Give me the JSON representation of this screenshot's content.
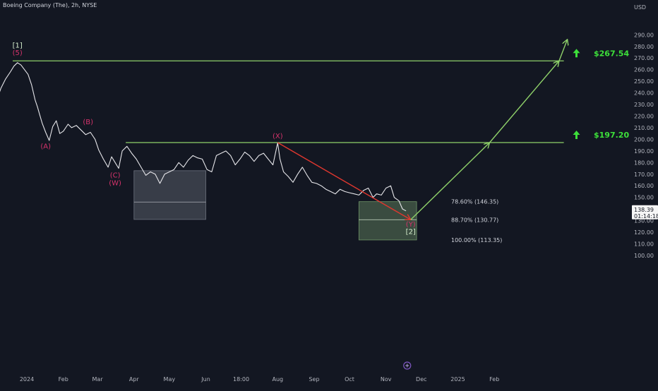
{
  "header": {
    "symbol_title": "Boeing Company (The), 2h, NYSE",
    "currency": "USD"
  },
  "colors": {
    "bg": "#131722",
    "price": "#e6e6ea",
    "green": "#8fd16a",
    "target_green": "#3de03a",
    "red": "#e0372f",
    "magenta": "#d6336c",
    "white_label": "#d9f2d0",
    "zone_gray": "#9aa0ab",
    "zone_green": "#8fbf80",
    "axis_text": "#b2b5be"
  },
  "chart_data": {
    "type": "line",
    "title": "",
    "xlabel": "",
    "ylabel": "",
    "ylim": [
      100,
      300
    ],
    "grid": false,
    "y_ticks": [
      100,
      110,
      120,
      130,
      140,
      150,
      160,
      170,
      180,
      190,
      200,
      210,
      220,
      230,
      240,
      250,
      260,
      270,
      280,
      290
    ],
    "y_tick_labels": [
      "100.00",
      "110.00",
      "120.00",
      "130.00",
      "140.00",
      "150.00",
      "160.00",
      "170.00",
      "180.00",
      "190.00",
      "200.00",
      "210.00",
      "220.00",
      "230.00",
      "240.00",
      "250.00",
      "260.00",
      "270.00",
      "280.00",
      "290.00"
    ],
    "x_tick_labels": [
      {
        "label": "2024",
        "x": "2024-01-01"
      },
      {
        "label": "Feb",
        "x": "2024-02-01"
      },
      {
        "label": "Mar",
        "x": "2024-03-01"
      },
      {
        "label": "Apr",
        "x": "2024-04-01"
      },
      {
        "label": "May",
        "x": "2024-05-01"
      },
      {
        "label": "Jun",
        "x": "2024-06-01"
      },
      {
        "label": "18:00",
        "x": "2024-07-01"
      },
      {
        "label": "Aug",
        "x": "2024-08-01"
      },
      {
        "label": "Sep",
        "x": "2024-09-01"
      },
      {
        "label": "Oct",
        "x": "2024-10-01"
      },
      {
        "label": "Nov",
        "x": "2024-11-01"
      },
      {
        "label": "Dec",
        "x": "2024-12-01"
      },
      {
        "label": "2025",
        "x": "2025-01-01"
      },
      {
        "label": "Feb",
        "x": "2025-02-01"
      }
    ],
    "price_series": {
      "x": [
        "2023-12-06",
        "2023-12-10",
        "2023-12-14",
        "2023-12-18",
        "2023-12-21",
        "2023-12-24",
        "2023-12-27",
        "2023-12-30",
        "2024-01-02",
        "2024-01-05",
        "2024-01-08",
        "2024-01-10",
        "2024-01-12",
        "2024-01-14",
        "2024-01-17",
        "2024-01-20",
        "2024-01-23",
        "2024-01-26",
        "2024-01-29",
        "2024-02-01",
        "2024-02-05",
        "2024-02-08",
        "2024-02-12",
        "2024-02-16",
        "2024-02-20",
        "2024-02-24",
        "2024-02-28",
        "2024-03-02",
        "2024-03-06",
        "2024-03-10",
        "2024-03-13",
        "2024-03-16",
        "2024-03-19",
        "2024-03-22",
        "2024-03-26",
        "2024-03-30",
        "2024-04-03",
        "2024-04-07",
        "2024-04-11",
        "2024-04-15",
        "2024-04-19",
        "2024-04-23",
        "2024-04-27",
        "2024-05-01",
        "2024-05-05",
        "2024-05-09",
        "2024-05-13",
        "2024-05-17",
        "2024-05-21",
        "2024-05-25",
        "2024-05-29",
        "2024-06-02",
        "2024-06-06",
        "2024-06-10",
        "2024-06-14",
        "2024-06-18",
        "2024-06-22",
        "2024-06-26",
        "2024-06-30",
        "2024-07-04",
        "2024-07-08",
        "2024-07-12",
        "2024-07-16",
        "2024-07-20",
        "2024-07-24",
        "2024-07-28",
        "2024-08-01",
        "2024-08-03",
        "2024-08-06",
        "2024-08-10",
        "2024-08-14",
        "2024-08-18",
        "2024-08-22",
        "2024-08-26",
        "2024-08-30",
        "2024-09-03",
        "2024-09-07",
        "2024-09-11",
        "2024-09-15",
        "2024-09-19",
        "2024-09-23",
        "2024-09-27",
        "2024-10-01",
        "2024-10-05",
        "2024-10-09",
        "2024-10-13",
        "2024-10-17",
        "2024-10-21",
        "2024-10-24",
        "2024-10-28",
        "2024-11-01",
        "2024-11-05",
        "2024-11-08",
        "2024-11-12",
        "2024-11-15",
        "2024-11-18"
      ],
      "y": [
        232,
        244,
        252,
        258,
        263,
        266,
        264,
        260,
        256,
        247,
        234,
        228,
        221,
        214,
        206,
        199,
        211,
        216,
        205,
        207,
        213,
        210,
        212,
        208,
        204,
        206,
        200,
        191,
        183,
        176,
        185,
        180,
        175,
        190,
        194,
        188,
        183,
        176,
        169,
        172,
        170,
        162,
        170,
        172,
        174,
        180,
        176,
        182,
        186,
        184,
        183,
        174,
        172,
        186,
        188,
        190,
        186,
        178,
        183,
        189,
        186,
        181,
        186,
        188,
        183,
        178,
        197,
        183,
        172,
        168,
        163,
        170,
        176,
        169,
        163,
        162,
        160,
        157,
        155,
        153,
        157,
        155,
        154,
        153,
        152,
        156,
        158,
        150,
        153,
        152,
        158,
        160,
        150,
        147,
        140,
        138.39
      ]
    },
    "zones": [
      {
        "name": "gray-zone",
        "x0": "2024-04-01",
        "x1": "2024-06-01",
        "y0": 131,
        "y1": 173,
        "mid": 146
      },
      {
        "name": "green-zone",
        "x0": "2024-10-09",
        "x1": "2024-11-27",
        "y0": 113.35,
        "y1": 146.35,
        "mid": 130.77
      }
    ],
    "levels": [
      {
        "name": "top",
        "y": 267.54,
        "x0": "2023-12-20",
        "x1": "2025-04-01"
      },
      {
        "name": "mid",
        "y": 197.2,
        "x0": "2024-03-25",
        "x1": "2025-04-01"
      }
    ],
    "targets": [
      {
        "label": "$267.54",
        "y": 267.54
      },
      {
        "label": "$197.20",
        "y": 197.2
      }
    ],
    "fib_labels": [
      {
        "label": "78.60% (146.35)",
        "y": 146.35
      },
      {
        "label": "88.70% (130.77)",
        "y": 130.77
      },
      {
        "label": "100.00% (113.35)",
        "y": 113.35
      }
    ],
    "red_path": {
      "x0": "2024-08-01",
      "y0": 197.2,
      "x1": "2024-11-22",
      "y1": 130.8
    },
    "green_path": [
      {
        "x": "2024-11-22",
        "y": 130.8
      },
      {
        "x": "2025-01-28",
        "y": 197.2
      },
      {
        "x": "2025-03-28",
        "y": 267.54
      },
      {
        "x": "2025-04-04",
        "y": 286
      }
    ],
    "wave_labels": [
      {
        "text": "[1]",
        "x": "2023-12-24",
        "y": 279,
        "color": "white"
      },
      {
        "text": "(5)",
        "x": "2023-12-24",
        "y": 272.5,
        "color": "magenta"
      },
      {
        "text": "(A)",
        "x": "2024-01-17",
        "y": 192,
        "color": "magenta"
      },
      {
        "text": "(B)",
        "x": "2024-02-22",
        "y": 213,
        "color": "magenta"
      },
      {
        "text": "(C)",
        "x": "2024-03-16",
        "y": 167,
        "color": "magenta"
      },
      {
        "text": "(W)",
        "x": "2024-03-16",
        "y": 160.5,
        "color": "magenta"
      },
      {
        "text": "(X)",
        "x": "2024-08-01",
        "y": 201,
        "color": "magenta"
      },
      {
        "text": "(Y)",
        "x": "2024-11-22",
        "y": 125,
        "color": "magenta"
      },
      {
        "text": "[2]",
        "x": "2024-11-22",
        "y": 118.5,
        "color": "white"
      }
    ],
    "current_price": {
      "price": "138.39",
      "timer": "01:14:18",
      "y": 138.39
    }
  }
}
